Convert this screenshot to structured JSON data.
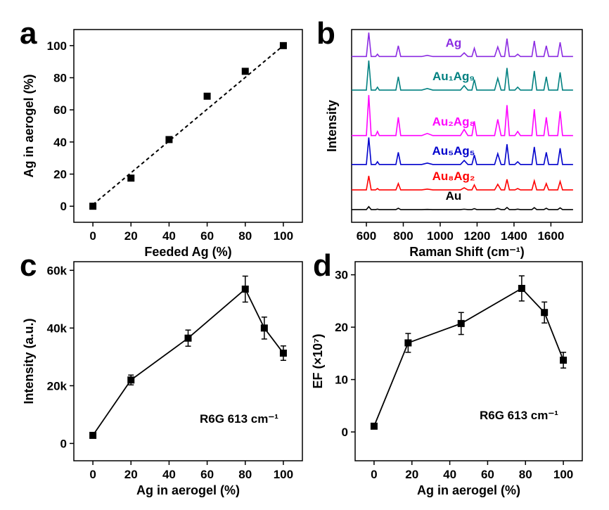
{
  "chart_data": [
    {
      "type": "scatter",
      "label": "a",
      "xlabel": "Feeded Ag (%)",
      "ylabel": "Ag in aerogel (%)",
      "x": [
        0,
        20,
        40,
        60,
        80,
        100
      ],
      "values": [
        0,
        17.5,
        41.5,
        68.5,
        84,
        100
      ],
      "color": "#000000",
      "trend_line": {
        "x": [
          0,
          100
        ],
        "values": [
          1,
          100
        ]
      },
      "xlim": [
        -10,
        110
      ],
      "ylim": [
        -10,
        110
      ],
      "xticks": [
        0,
        20,
        40,
        60,
        80,
        100
      ],
      "yticks": [
        0,
        20,
        40,
        60,
        80,
        100
      ]
    },
    {
      "type": "line",
      "label": "b",
      "xlabel": "Raman Shift (cm⁻¹)",
      "ylabel": "Intensity",
      "x": [
        520,
        600,
        613,
        626,
        650,
        660,
        670,
        760,
        773,
        786,
        900,
        930,
        960,
        1110,
        1130,
        1150,
        1172,
        1185,
        1198,
        1295,
        1312,
        1330,
        1349,
        1362,
        1375,
        1405,
        1420,
        1435,
        1497,
        1510,
        1523,
        1562,
        1575,
        1588,
        1637,
        1650,
        1663,
        1720
      ],
      "series": [
        {
          "name": "Ag",
          "color": "#8b2be2",
          "values": [
            86,
            86,
            98.4,
            86,
            86,
            87.2,
            86,
            86,
            91.6,
            86,
            86,
            86.6,
            86,
            86,
            87.9,
            86,
            86,
            90.3,
            86,
            86,
            91.0,
            86,
            86,
            95.3,
            86,
            86,
            87.2,
            86,
            86,
            94.1,
            86,
            86,
            91.6,
            86,
            86,
            93.4,
            86,
            86
          ]
        },
        {
          "name": "Au₁Ag₉",
          "color": "#008080",
          "values": [
            68.6,
            68.6,
            83.9,
            68.6,
            68.6,
            70.1,
            68.6,
            68.6,
            75.5,
            68.6,
            68.6,
            69.4,
            68.6,
            68.6,
            70.9,
            68.6,
            68.6,
            74.0,
            68.6,
            68.6,
            74.7,
            68.6,
            68.6,
            80.1,
            68.6,
            68.6,
            70.1,
            68.6,
            68.6,
            78.5,
            68.6,
            68.6,
            75.5,
            68.6,
            68.6,
            77.8,
            68.6,
            68.6
          ]
        },
        {
          "name": "Au₂Ag₈",
          "color": "#ff00ff",
          "values": [
            45,
            45,
            66,
            45,
            45,
            47.1,
            45,
            45,
            54.5,
            45,
            45,
            46.1,
            45,
            45,
            48.2,
            45,
            45,
            52.4,
            45,
            45,
            53.4,
            45,
            45,
            60.8,
            45,
            45,
            47.1,
            45,
            45,
            58.7,
            45,
            45,
            54.5,
            45,
            45,
            57.6,
            45,
            45
          ]
        },
        {
          "name": "Au₅Ag₅",
          "color": "#0000cc",
          "values": [
            30,
            30,
            44,
            30,
            30,
            31.4,
            30,
            30,
            36.3,
            30,
            30,
            30.7,
            30,
            30,
            32.1,
            30,
            30,
            34.9,
            30,
            30,
            35.6,
            30,
            30,
            40.5,
            30,
            30,
            31.4,
            30,
            30,
            39.1,
            30,
            30,
            36.3,
            30,
            30,
            38.4,
            30,
            30
          ]
        },
        {
          "name": "Au₈Ag₂",
          "color": "#ff0000",
          "values": [
            16.8,
            16.8,
            24.1,
            16.8,
            16.8,
            17.5,
            16.8,
            16.8,
            20.1,
            16.8,
            16.8,
            17.2,
            16.8,
            16.8,
            17.9,
            16.8,
            16.8,
            19.4,
            16.8,
            16.8,
            19.7,
            16.8,
            16.8,
            22.3,
            16.8,
            16.8,
            17.5,
            16.8,
            16.8,
            21.5,
            16.8,
            16.8,
            20.1,
            16.8,
            16.8,
            21.2,
            16.8,
            16.8
          ]
        },
        {
          "name": "Au",
          "color": "#000000",
          "values": [
            6.6,
            6.6,
            8.1,
            6.6,
            6.6,
            6.8,
            6.6,
            6.6,
            7.3,
            6.6,
            6.6,
            6.7,
            6.6,
            6.6,
            6.8,
            6.6,
            6.6,
            7.1,
            6.6,
            6.6,
            7.2,
            6.6,
            6.6,
            7.7,
            6.6,
            6.6,
            6.8,
            6.6,
            6.6,
            7.6,
            6.6,
            6.6,
            7.3,
            6.6,
            6.6,
            7.5,
            6.6,
            6.6
          ]
        }
      ],
      "xlim": [
        520,
        1770
      ],
      "ylim": [
        0,
        100
      ],
      "xticks": [
        600,
        800,
        1000,
        1200,
        1400,
        1600
      ]
    },
    {
      "type": "line",
      "label": "c",
      "xlabel": "Ag in aerogel (%)",
      "ylabel": "Intensity (a.u.)",
      "annotation": "R6G 613 cm⁻¹",
      "marker": "square",
      "x": [
        0,
        20,
        50,
        80,
        90,
        100
      ],
      "series": [
        {
          "color": "#000000",
          "values": [
            2800,
            22000,
            36500,
            53500,
            40000,
            31300
          ],
          "errors": [
            0,
            1700,
            2800,
            4500,
            3800,
            2500
          ]
        }
      ],
      "xlim": [
        -10,
        110
      ],
      "ylim": [
        -6000,
        63000
      ],
      "xticks": [
        0,
        20,
        40,
        60,
        80,
        100
      ],
      "yticks": [
        0,
        {
          "value": 20000,
          "label": "20k"
        },
        {
          "value": 40000,
          "label": "40k"
        },
        {
          "value": 60000,
          "label": "60k"
        }
      ]
    },
    {
      "type": "line",
      "label": "d",
      "xlabel": "Ag in aerogel (%)",
      "ylabel": "EF (×10⁷)",
      "annotation": "R6G 613 cm⁻¹",
      "marker": "square",
      "x": [
        0,
        18,
        46,
        78,
        90,
        100
      ],
      "series": [
        {
          "color": "#000000",
          "values": [
            1.1,
            17,
            20.7,
            27.4,
            22.8,
            13.7
          ],
          "errors": [
            0,
            1.8,
            2.1,
            2.4,
            2.0,
            1.5
          ]
        }
      ],
      "xlim": [
        -10,
        110
      ],
      "ylim": [
        -5.5,
        32.5
      ],
      "xticks": [
        0,
        20,
        40,
        60,
        80,
        100
      ],
      "yticks": [
        0,
        10,
        20,
        30
      ]
    }
  ]
}
